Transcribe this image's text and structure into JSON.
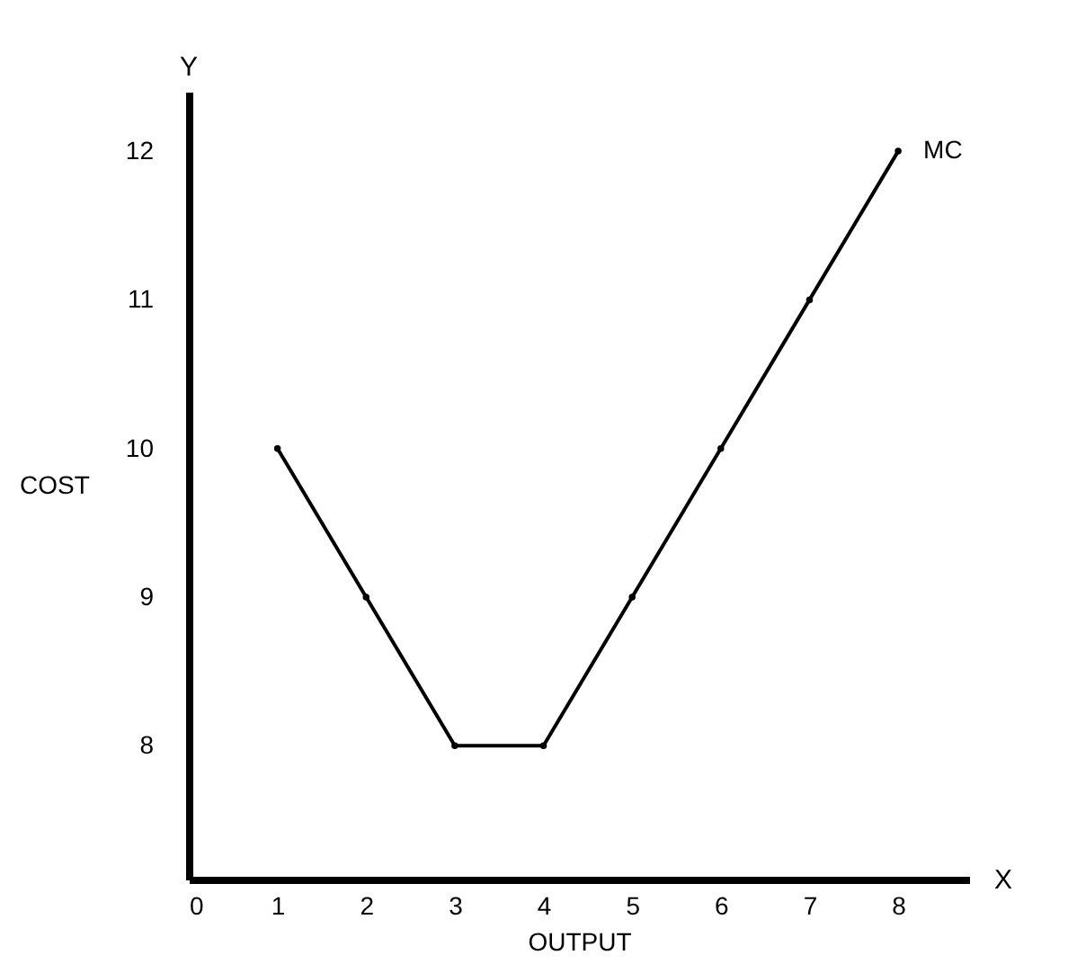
{
  "chart_data": {
    "type": "line",
    "xlabel": "OUTPUT",
    "ylabel": "COST",
    "x": [
      1,
      2,
      3,
      4,
      5,
      6,
      7,
      8
    ],
    "series": [
      {
        "name": "MC",
        "color": "#000000",
        "values": [
          10,
          9,
          8,
          8,
          9,
          10,
          11,
          12
        ]
      }
    ],
    "xlim": [
      0,
      8.8
    ],
    "xticks": [
      0,
      1,
      2,
      3,
      4,
      5,
      6,
      7,
      8
    ],
    "ylim": [
      7.1,
      12.4
    ],
    "yticks": [
      8,
      9,
      10,
      11,
      12
    ],
    "grid": false,
    "legend": false,
    "marker": "circle",
    "line_style": "solid",
    "annotations": [
      "Y",
      "X"
    ]
  }
}
